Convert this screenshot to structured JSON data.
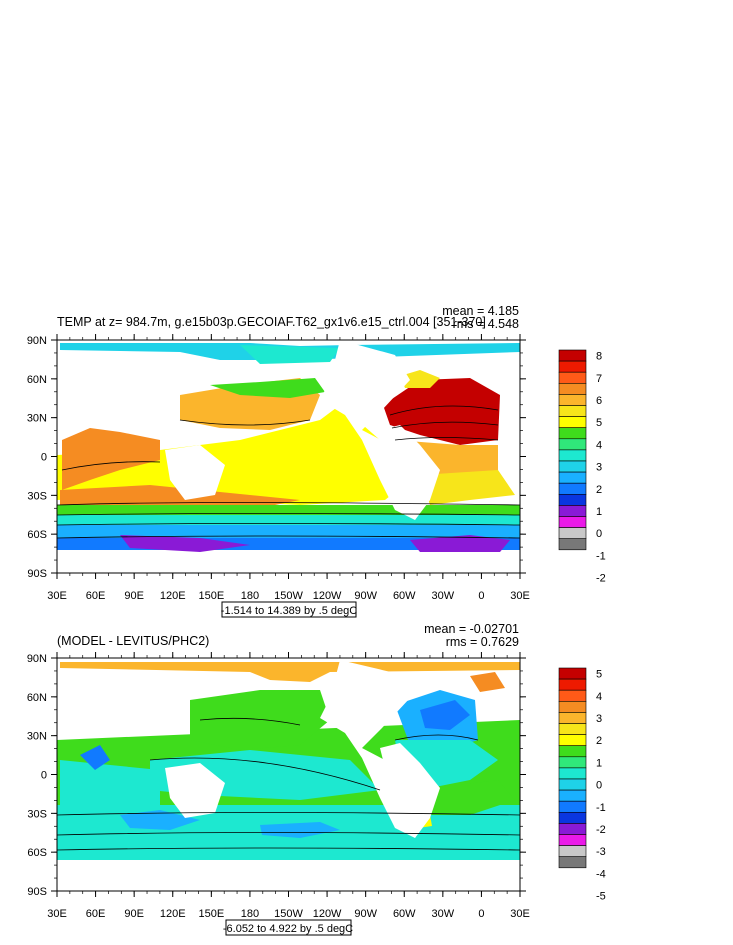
{
  "chart_data": [
    {
      "type": "heatmap",
      "subtype": "global ocean contour map",
      "title": "TEMP at z= 984.7m, g.e15b03p.GECOIAF.T62_gx1v6.e15_ctrl.004 [351-370]",
      "stats": [
        "mean = 4.185",
        "rms = 4.548"
      ],
      "ylim": [
        -90,
        90
      ],
      "xlim": [
        30,
        390
      ],
      "yticks": [
        "90N",
        "60N",
        "30N",
        "0",
        "30S",
        "60S",
        "90S"
      ],
      "xticks": [
        "30E",
        "60E",
        "90E",
        "120E",
        "150E",
        "180",
        "150W",
        "120W",
        "90W",
        "60W",
        "30W",
        "0",
        "30E"
      ],
      "contour_info": "-1.514 to 14.389 by .5 degC",
      "colorbar": {
        "labels": [
          "8",
          "7",
          "6",
          "5",
          "4",
          "3",
          "2",
          "1",
          "0",
          "-1",
          "-2"
        ],
        "colors": [
          "#c40000",
          "#ee1a00",
          "#ff5a18",
          "#f58c22",
          "#fbb52c",
          "#f7e51a",
          "#ffff00",
          "#3fdc1c",
          "#30e87a",
          "#1de8d0",
          "#1fd2e8",
          "#1ab0ff",
          "#117aff",
          "#0a36e0",
          "#8a1ad6",
          "#ea1ae8",
          "#c8c8c8",
          "#787878"
        ]
      }
    },
    {
      "type": "heatmap",
      "subtype": "global ocean contour map",
      "title": "(MODEL - LEVITUS/PHC2)",
      "stats": [
        "mean = -0.02701",
        "rms = 0.7629"
      ],
      "ylim": [
        -90,
        90
      ],
      "xlim": [
        30,
        390
      ],
      "yticks": [
        "90N",
        "60N",
        "30N",
        "0",
        "30S",
        "60S",
        "90S"
      ],
      "xticks": [
        "30E",
        "60E",
        "90E",
        "120E",
        "150E",
        "180",
        "150W",
        "120W",
        "90W",
        "60W",
        "30W",
        "0",
        "30E"
      ],
      "contour_info": "-6.052 to 4.922 by .5 degC",
      "colorbar": {
        "labels": [
          "5",
          "4",
          "3",
          "2",
          "1",
          "0",
          "-1",
          "-2",
          "-3",
          "-4",
          "-5"
        ],
        "colors": [
          "#c40000",
          "#ee1a00",
          "#ff5a18",
          "#f58c22",
          "#fbb52c",
          "#f7e51a",
          "#ffff00",
          "#3fdc1c",
          "#30e87a",
          "#1de8d0",
          "#1fd2e8",
          "#1ab0ff",
          "#117aff",
          "#0a36e0",
          "#8a1ad6",
          "#ea1ae8",
          "#c8c8c8",
          "#787878"
        ]
      }
    }
  ]
}
